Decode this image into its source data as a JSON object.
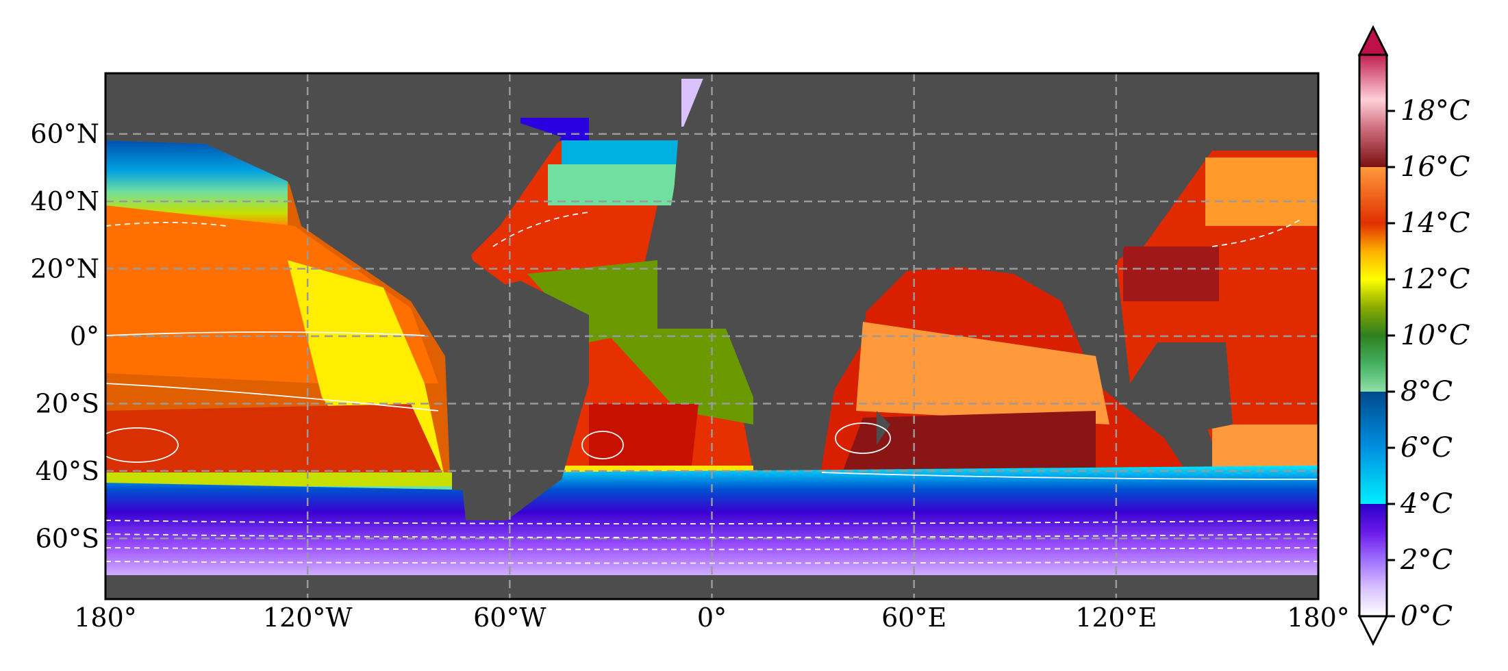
{
  "map": {
    "lat_ticks": [
      "60°N",
      "40°N",
      "20°N",
      "0°",
      "20°S",
      "40°S",
      "60°S"
    ],
    "lat_values": [
      60,
      40,
      20,
      0,
      -20,
      -40,
      -60
    ],
    "lon_ticks": [
      "180°",
      "120°W",
      "60°W",
      "0°",
      "60°E",
      "120°E",
      "180°"
    ],
    "lon_values": [
      -180,
      -120,
      -60,
      0,
      60,
      120,
      180
    ],
    "extent": {
      "lon": [
        -180,
        180
      ],
      "lat": [
        -78,
        78
      ]
    },
    "land_color": "#4d4d4d",
    "gridlines": "dashed",
    "contours": "white, dashed for negative"
  },
  "colorbar": {
    "ticks": [
      "0°C",
      "2°C",
      "4°C",
      "6°C",
      "8°C",
      "10°C",
      "12°C",
      "14°C",
      "16°C",
      "18°C"
    ],
    "values": [
      0,
      2,
      4,
      6,
      8,
      10,
      12,
      14,
      16,
      18
    ],
    "range": [
      0,
      20
    ],
    "extend": "both",
    "colors": [
      "#ffffff",
      "#c9a8ff",
      "#8a2be2",
      "#3a00d0",
      "#00e5ff",
      "#0066cc",
      "#004a8c",
      "#66d98c",
      "#2e8b2e",
      "#6b9a00",
      "#c8e000",
      "#ffff00",
      "#ffc000",
      "#ff7a00",
      "#e03000",
      "#c81000",
      "#ff9a3c",
      "#7a1010",
      "#e8909a",
      "#ffc0c8",
      "#d05070",
      "#b0003a"
    ]
  }
}
